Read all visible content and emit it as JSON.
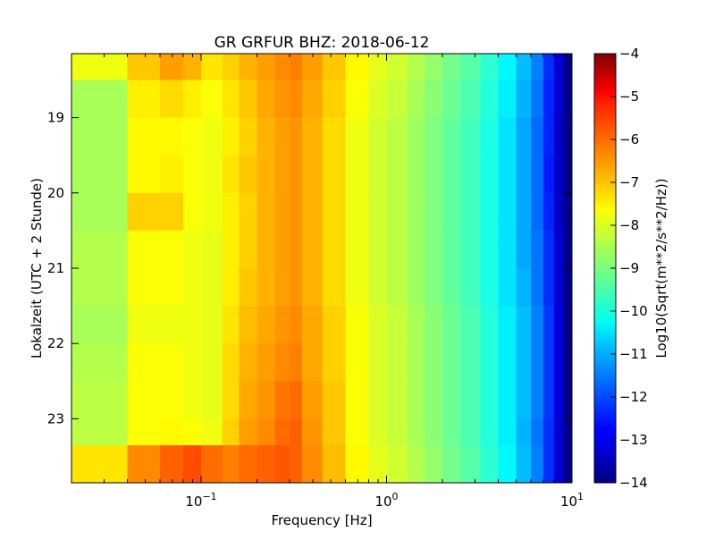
{
  "chart_data": {
    "type": "heatmap",
    "title": "GR GRFUR BHZ: 2018-06-12",
    "xlabel": "Frequency [Hz]",
    "ylabel": "Lokalzeit (UTC + 2 Stunde)",
    "x_scale": "log",
    "xlim": [
      0.02,
      10
    ],
    "ylim": [
      18.15,
      23.85
    ],
    "y_inverted": true,
    "x_ticks": [
      {
        "value": 0.1,
        "base": "10",
        "exp": "−1"
      },
      {
        "value": 1,
        "base": "10",
        "exp": "0"
      },
      {
        "value": 10,
        "base": "10",
        "exp": "1"
      }
    ],
    "y_ticks": [
      {
        "value": 19,
        "label": "19"
      },
      {
        "value": 20,
        "label": "20"
      },
      {
        "value": 21,
        "label": "21"
      },
      {
        "value": 22,
        "label": "22"
      },
      {
        "value": 23,
        "label": "23"
      }
    ],
    "colorbar": {
      "label": "Log10(Sqrt(m**2/s**2/Hz))",
      "colormap": "jet",
      "vmin": -14,
      "vmax": -4,
      "ticks": [
        {
          "value": -4,
          "label": "−4"
        },
        {
          "value": -5,
          "label": "−5"
        },
        {
          "value": -6,
          "label": "−6"
        },
        {
          "value": -7,
          "label": "−7"
        },
        {
          "value": -8,
          "label": "−8"
        },
        {
          "value": -9,
          "label": "−9"
        },
        {
          "value": -10,
          "label": "−10"
        },
        {
          "value": -11,
          "label": "−11"
        },
        {
          "value": -12,
          "label": "−12"
        },
        {
          "value": -13,
          "label": "−13"
        },
        {
          "value": -14,
          "label": "−14"
        }
      ]
    },
    "frequency_bins_hz": [
      0.02,
      0.04,
      0.06,
      0.08,
      0.1,
      0.13,
      0.16,
      0.2,
      0.25,
      0.3,
      0.35,
      0.45,
      0.6,
      0.8,
      1.0,
      1.3,
      1.6,
      2.0,
      2.5,
      3.2,
      4.0,
      5.0,
      6.0,
      7.0,
      8.0,
      9.0,
      10.0
    ],
    "time_bins_hours": [
      18.15,
      18.5,
      19.0,
      19.5,
      20.0,
      20.5,
      21.0,
      21.5,
      22.0,
      22.5,
      23.0,
      23.35,
      23.85
    ],
    "psd_log10": [
      [
        -7.9,
        -7.2,
        -6.8,
        -7.0,
        -7.5,
        -7.3,
        -7.0,
        -6.8,
        -6.6,
        -6.5,
        -6.8,
        -7.2,
        -7.7,
        -8.0,
        -8.2,
        -8.5,
        -8.8,
        -9.1,
        -9.4,
        -9.8,
        -10.3,
        -10.9,
        -11.5,
        -12.3,
        -13.2,
        -13.9
      ],
      [
        -8.6,
        -7.6,
        -7.4,
        -7.6,
        -7.8,
        -7.5,
        -7.2,
        -6.9,
        -6.7,
        -6.6,
        -6.9,
        -7.3,
        -7.8,
        -8.1,
        -8.3,
        -8.6,
        -8.9,
        -9.2,
        -9.5,
        -9.9,
        -10.4,
        -11.0,
        -11.6,
        -12.4,
        -13.2,
        -13.9
      ],
      [
        -8.6,
        -7.7,
        -7.7,
        -7.8,
        -7.9,
        -7.6,
        -7.3,
        -7.0,
        -6.8,
        -6.7,
        -7.0,
        -7.4,
        -7.9,
        -8.2,
        -8.4,
        -8.7,
        -9.0,
        -9.3,
        -9.6,
        -10.0,
        -10.5,
        -11.1,
        -11.7,
        -12.4,
        -13.3,
        -13.9
      ],
      [
        -8.6,
        -7.7,
        -7.6,
        -7.8,
        -7.9,
        -7.5,
        -7.2,
        -7.0,
        -6.8,
        -6.7,
        -7.0,
        -7.4,
        -7.9,
        -8.2,
        -8.4,
        -8.7,
        -9.0,
        -9.3,
        -9.6,
        -10.0,
        -10.5,
        -11.1,
        -11.7,
        -12.5,
        -13.3,
        -13.9
      ],
      [
        -8.6,
        -7.3,
        -7.3,
        -7.8,
        -7.9,
        -7.6,
        -7.3,
        -7.0,
        -6.8,
        -6.7,
        -7.0,
        -7.4,
        -7.9,
        -8.2,
        -8.4,
        -8.7,
        -9.0,
        -9.3,
        -9.6,
        -10.0,
        -10.5,
        -11.1,
        -11.7,
        -12.4,
        -13.3,
        -13.9
      ],
      [
        -8.5,
        -7.8,
        -7.8,
        -7.9,
        -8.0,
        -7.6,
        -7.3,
        -7.0,
        -6.8,
        -6.7,
        -7.0,
        -7.4,
        -7.9,
        -8.2,
        -8.4,
        -8.7,
        -9.0,
        -9.3,
        -9.6,
        -10.0,
        -10.5,
        -11.1,
        -11.6,
        -12.3,
        -13.2,
        -13.9
      ],
      [
        -8.5,
        -7.8,
        -7.8,
        -7.9,
        -8.0,
        -7.6,
        -7.2,
        -7.0,
        -6.8,
        -6.7,
        -7.0,
        -7.4,
        -7.9,
        -8.2,
        -8.4,
        -8.7,
        -9.0,
        -9.3,
        -9.6,
        -10.0,
        -10.5,
        -11.0,
        -11.6,
        -12.3,
        -13.2,
        -13.9
      ],
      [
        -8.6,
        -7.9,
        -7.9,
        -7.9,
        -8.0,
        -7.5,
        -7.1,
        -6.9,
        -6.7,
        -6.6,
        -6.9,
        -7.3,
        -7.8,
        -8.1,
        -8.3,
        -8.6,
        -8.9,
        -9.2,
        -9.5,
        -9.9,
        -10.4,
        -10.9,
        -11.5,
        -12.2,
        -13.1,
        -13.9
      ],
      [
        -8.5,
        -7.8,
        -7.8,
        -7.9,
        -8.0,
        -7.4,
        -7.0,
        -6.8,
        -6.6,
        -6.5,
        -6.9,
        -7.3,
        -7.8,
        -8.1,
        -8.3,
        -8.6,
        -8.9,
        -9.2,
        -9.5,
        -9.9,
        -10.4,
        -10.9,
        -11.5,
        -12.2,
        -13.1,
        -13.9
      ],
      [
        -8.4,
        -7.8,
        -7.8,
        -7.9,
        -8.0,
        -7.4,
        -6.9,
        -6.7,
        -6.4,
        -6.3,
        -6.8,
        -7.2,
        -7.8,
        -8.1,
        -8.3,
        -8.6,
        -8.9,
        -9.2,
        -9.5,
        -9.9,
        -10.4,
        -10.9,
        -11.5,
        -12.2,
        -13.1,
        -13.9
      ],
      [
        -8.4,
        -7.8,
        -7.7,
        -7.8,
        -7.9,
        -7.3,
        -6.8,
        -6.6,
        -6.3,
        -6.2,
        -6.7,
        -7.2,
        -7.8,
        -8.1,
        -8.3,
        -8.6,
        -8.9,
        -9.2,
        -9.5,
        -9.9,
        -10.4,
        -11.0,
        -11.6,
        -12.3,
        -13.2,
        -13.9
      ],
      [
        -7.5,
        -6.6,
        -6.2,
        -6.0,
        -6.3,
        -6.5,
        -6.3,
        -6.2,
        -6.1,
        -6.2,
        -6.6,
        -7.1,
        -7.7,
        -8.0,
        -8.2,
        -8.5,
        -8.8,
        -9.1,
        -9.4,
        -9.8,
        -10.3,
        -10.9,
        -11.5,
        -12.3,
        -13.2,
        -13.9
      ]
    ]
  }
}
